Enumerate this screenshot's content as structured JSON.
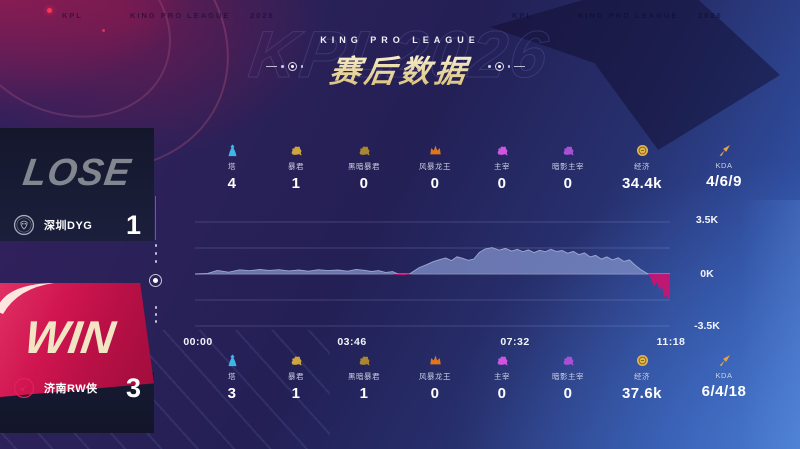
{
  "top_strip": {
    "items": [
      "KPL",
      "KING PRO LEAGUE",
      "2026",
      "KPL",
      "KING PRO LEAGUE",
      "2026"
    ]
  },
  "header": {
    "league": "KING PRO LEAGUE",
    "title": "赛后数据",
    "watermark": "KPL2026"
  },
  "teams": {
    "lose": {
      "result": "LOSE",
      "name": "深圳DYG",
      "score": "1"
    },
    "win": {
      "result": "WIN",
      "name": "济南RW侠",
      "score": "3"
    }
  },
  "stats": {
    "columns": [
      {
        "label": "塔",
        "icon": "tower-icon",
        "shape": "tower",
        "color": "#3fb6e8"
      },
      {
        "label": "暴君",
        "icon": "tyrant-icon",
        "shape": "beast",
        "color": "#cfa43c"
      },
      {
        "label": "黑暗暴君",
        "icon": "dark-tyrant-icon",
        "shape": "beast",
        "color": "#a8872e"
      },
      {
        "label": "风暴龙王",
        "icon": "storm-dragon-icon",
        "shape": "crown",
        "color": "#e0761c"
      },
      {
        "label": "主宰",
        "icon": "dominator-icon",
        "shape": "beast",
        "color": "#cf55e0"
      },
      {
        "label": "暗影主宰",
        "icon": "shadow-dominator-icon",
        "shape": "beast",
        "color": "#a94fd4"
      },
      {
        "label": "经济",
        "icon": "economy-icon",
        "shape": "coin",
        "color": "#e2b64a"
      },
      {
        "label": "KDA",
        "icon": "kda-icon",
        "shape": "arrow",
        "color": "#e8a24a"
      }
    ],
    "lose_values": [
      "4",
      "1",
      "0",
      "0",
      "0",
      "0",
      "34.4k",
      "4/6/9"
    ],
    "win_values": [
      "3",
      "1",
      "1",
      "0",
      "0",
      "0",
      "37.6k",
      "6/4/18"
    ]
  },
  "chart_data": {
    "type": "area",
    "x_ticks": [
      "00:00",
      "03:46",
      "07:32",
      "11:18"
    ],
    "x_range_seconds": [
      0,
      678
    ],
    "y_ticks": [
      "3.5K",
      "0K",
      "-3.5K"
    ],
    "ylim": [
      -3500,
      3500
    ],
    "gridline_values": [
      3500,
      1750,
      0,
      -1750,
      -3500
    ],
    "legend": "none",
    "series": [
      {
        "name": "economy-difference",
        "positive_color": "#7d8dc6",
        "negative_color": "#c61472",
        "points": [
          [
            0,
            0
          ],
          [
            18,
            40
          ],
          [
            32,
            240
          ],
          [
            48,
            120
          ],
          [
            64,
            280
          ],
          [
            78,
            220
          ],
          [
            92,
            300
          ],
          [
            106,
            240
          ],
          [
            120,
            290
          ],
          [
            134,
            210
          ],
          [
            148,
            270
          ],
          [
            162,
            190
          ],
          [
            176,
            290
          ],
          [
            190,
            230
          ],
          [
            204,
            270
          ],
          [
            218,
            190
          ],
          [
            230,
            310
          ],
          [
            242,
            250
          ],
          [
            252,
            170
          ],
          [
            262,
            230
          ],
          [
            272,
            110
          ],
          [
            282,
            160
          ],
          [
            290,
            -70
          ],
          [
            298,
            -90
          ],
          [
            306,
            -30
          ],
          [
            312,
            180
          ],
          [
            320,
            430
          ],
          [
            330,
            620
          ],
          [
            340,
            830
          ],
          [
            350,
            980
          ],
          [
            358,
            1080
          ],
          [
            366,
            900
          ],
          [
            374,
            1160
          ],
          [
            382,
            1060
          ],
          [
            390,
            920
          ],
          [
            398,
            1000
          ],
          [
            406,
            1460
          ],
          [
            414,
            1680
          ],
          [
            424,
            1780
          ],
          [
            434,
            1600
          ],
          [
            443,
            1720
          ],
          [
            452,
            1540
          ],
          [
            460,
            1660
          ],
          [
            468,
            1500
          ],
          [
            476,
            1620
          ],
          [
            484,
            1440
          ],
          [
            492,
            1600
          ],
          [
            500,
            1500
          ],
          [
            508,
            1660
          ],
          [
            516,
            1520
          ],
          [
            524,
            1580
          ],
          [
            532,
            1400
          ],
          [
            540,
            1520
          ],
          [
            548,
            1300
          ],
          [
            556,
            1420
          ],
          [
            564,
            1150
          ],
          [
            572,
            1250
          ],
          [
            580,
            1000
          ],
          [
            588,
            1150
          ],
          [
            596,
            950
          ],
          [
            604,
            1100
          ],
          [
            612,
            850
          ],
          [
            620,
            950
          ],
          [
            628,
            600
          ],
          [
            636,
            300
          ],
          [
            643,
            100
          ],
          [
            647,
            0
          ],
          [
            651,
            -350
          ],
          [
            655,
            -850
          ],
          [
            659,
            -550
          ],
          [
            663,
            -1050
          ],
          [
            667,
            -900
          ],
          [
            670,
            -1600
          ],
          [
            673,
            -1450
          ],
          [
            678,
            -1800
          ]
        ]
      }
    ]
  },
  "colors": {
    "title_gold": "#ead9a4",
    "win_crimson": "#c41048",
    "lose_gray": "#81868f",
    "panel_navy": "#161a33",
    "area_positive": "#7d8dc6",
    "area_negative": "#c61472"
  }
}
